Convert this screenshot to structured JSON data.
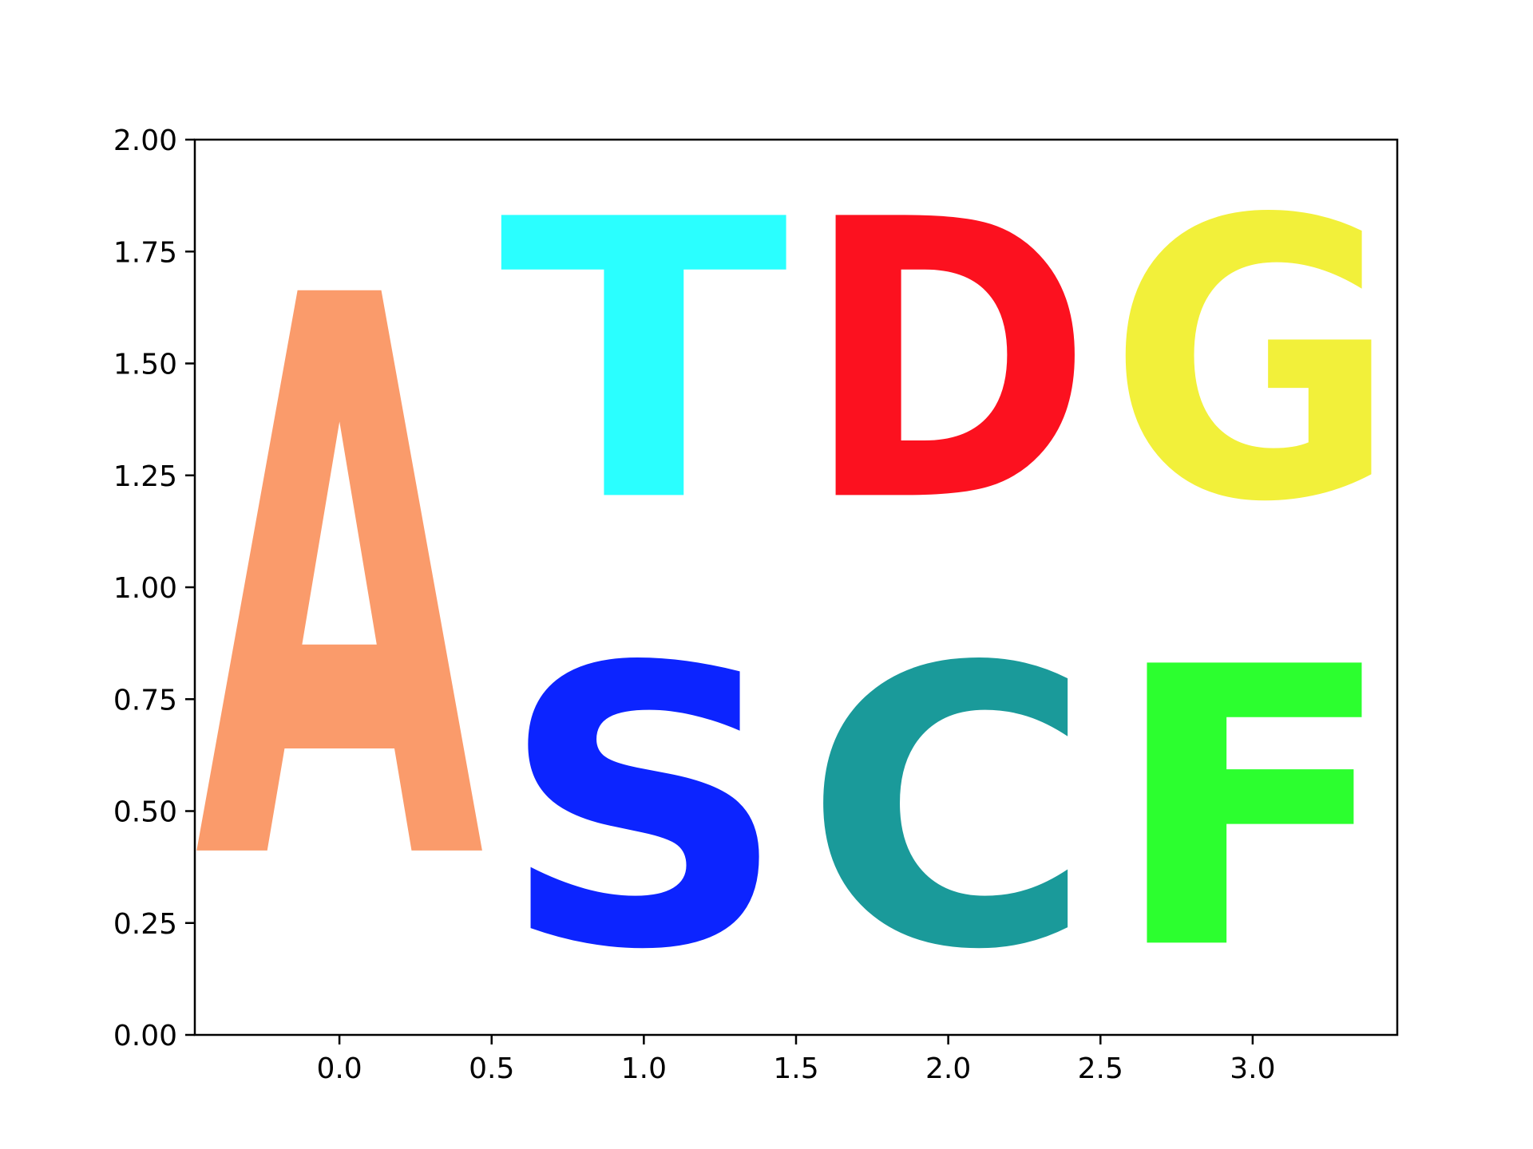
{
  "chart_data": {
    "type": "logo",
    "title": "",
    "xlabel": "",
    "ylabel": "",
    "xlim": [
      -0.475,
      3.475
    ],
    "ylim": [
      0,
      2
    ],
    "grid": false,
    "x_ticks": [
      0.0,
      0.5,
      1.0,
      1.5,
      2.0,
      2.5,
      3.0
    ],
    "x_tick_labels": [
      "0.0",
      "0.5",
      "1.0",
      "1.5",
      "2.0",
      "2.5",
      "3.0"
    ],
    "y_ticks": [
      0.0,
      0.25,
      0.5,
      0.75,
      1.0,
      1.25,
      1.5,
      1.75,
      2.0
    ],
    "y_tick_labels": [
      "0.00",
      "0.25",
      "0.50",
      "0.75",
      "1.00",
      "1.25",
      "1.50",
      "1.75",
      "2.00"
    ],
    "letters": [
      {
        "char": "A",
        "x": 0,
        "y_bottom": 0,
        "height": 2,
        "color": "#fa9b6b"
      },
      {
        "char": "S",
        "x": 1,
        "y_bottom": 0,
        "height": 1,
        "color": "#0c24ff"
      },
      {
        "char": "T",
        "x": 1,
        "y_bottom": 1,
        "height": 1,
        "color": "#2affff"
      },
      {
        "char": "C",
        "x": 2,
        "y_bottom": 0,
        "height": 1,
        "color": "#1a9a9a"
      },
      {
        "char": "D",
        "x": 2,
        "y_bottom": 1,
        "height": 1,
        "color": "#fc111f"
      },
      {
        "char": "F",
        "x": 3,
        "y_bottom": 0,
        "height": 1,
        "color": "#2cff2f"
      },
      {
        "char": "G",
        "x": 3,
        "y_bottom": 1,
        "height": 1,
        "color": "#f2f03a"
      }
    ]
  }
}
